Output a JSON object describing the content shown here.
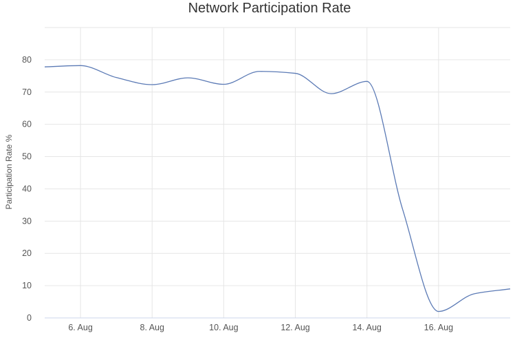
{
  "chart_data": {
    "type": "line",
    "title": "Network Participation Rate",
    "xlabel": "",
    "ylabel": "Participation Rate %",
    "x_tick_labels": [
      "6. Aug",
      "8. Aug",
      "10. Aug",
      "12. Aug",
      "14. Aug",
      "16. Aug"
    ],
    "y_ticks": [
      0,
      10,
      20,
      30,
      40,
      50,
      60,
      70,
      80
    ],
    "ylim": [
      0,
      90
    ],
    "xlim": [
      "2021-08-05",
      "2021-08-18"
    ],
    "grid": true,
    "legend": "none",
    "series": [
      {
        "color": "#5b7ab5",
        "points": [
          [
            "2021-08-05",
            77.8
          ],
          [
            "2021-08-06",
            78.2
          ],
          [
            "2021-08-07",
            74.5
          ],
          [
            "2021-08-08",
            72.3
          ],
          [
            "2021-08-09",
            74.4
          ],
          [
            "2021-08-10",
            72.4
          ],
          [
            "2021-08-11",
            76.4
          ],
          [
            "2021-08-12",
            75.8
          ],
          [
            "2021-08-13",
            69.5
          ],
          [
            "2021-08-14",
            73.3
          ],
          [
            "2021-08-15",
            33.5
          ],
          [
            "2021-08-16",
            2.0
          ],
          [
            "2021-08-17",
            7.5
          ],
          [
            "2021-08-18",
            9.0
          ]
        ]
      }
    ]
  }
}
